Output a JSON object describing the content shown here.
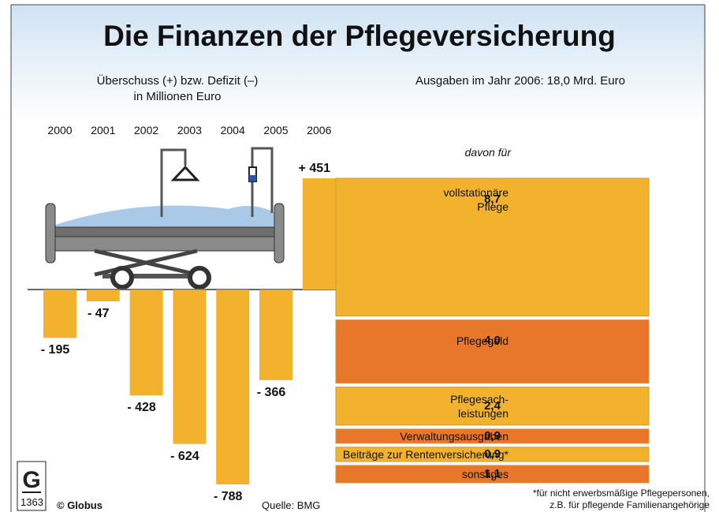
{
  "title": "Die Finanzen der Pflegeversicherung",
  "footer": {
    "logo_number": "1363",
    "copyright": "© Globus",
    "source": "Quelle: BMG",
    "footnote": "*für nicht erwerbsmäßige Pflegepersonen,\nz.B. für pflegende Familienangehörige"
  },
  "chart_data": [
    {
      "type": "bar",
      "subtitle": "Überschuss (+) bzw. Defizit (–)\nin Millionen Euro",
      "categories": [
        "2000",
        "2001",
        "2002",
        "2003",
        "2004",
        "2005",
        "2006"
      ],
      "values": [
        -195,
        -47,
        -428,
        -624,
        -788,
        -366,
        451
      ],
      "value_labels": [
        "- 195",
        "- 47",
        "- 428",
        "- 624",
        "- 788",
        "- 366",
        "+ 451"
      ],
      "color": "#f2b22e"
    },
    {
      "type": "stacked_column",
      "subtitle": "Ausgaben im Jahr 2006: 18,0 Mrd. Euro",
      "note": "davon für",
      "categories": [
        "vollstationäre\nPflege",
        "Pflegegeld",
        "Pflegesach-\nleistungen",
        "Verwaltungsausgaben",
        "Beiträge zur Rentenversicherung*",
        "sonstiges"
      ],
      "values": [
        8.7,
        4.0,
        2.4,
        0.9,
        0.9,
        1.1
      ],
      "value_labels": [
        "8,7",
        "4,0",
        "2,4",
        "0,9",
        "0,9",
        "1,1"
      ],
      "colors": [
        "#f2b22e",
        "#e8772b",
        "#f2b22e",
        "#e8772b",
        "#f2b22e",
        "#e8772b"
      ]
    }
  ]
}
